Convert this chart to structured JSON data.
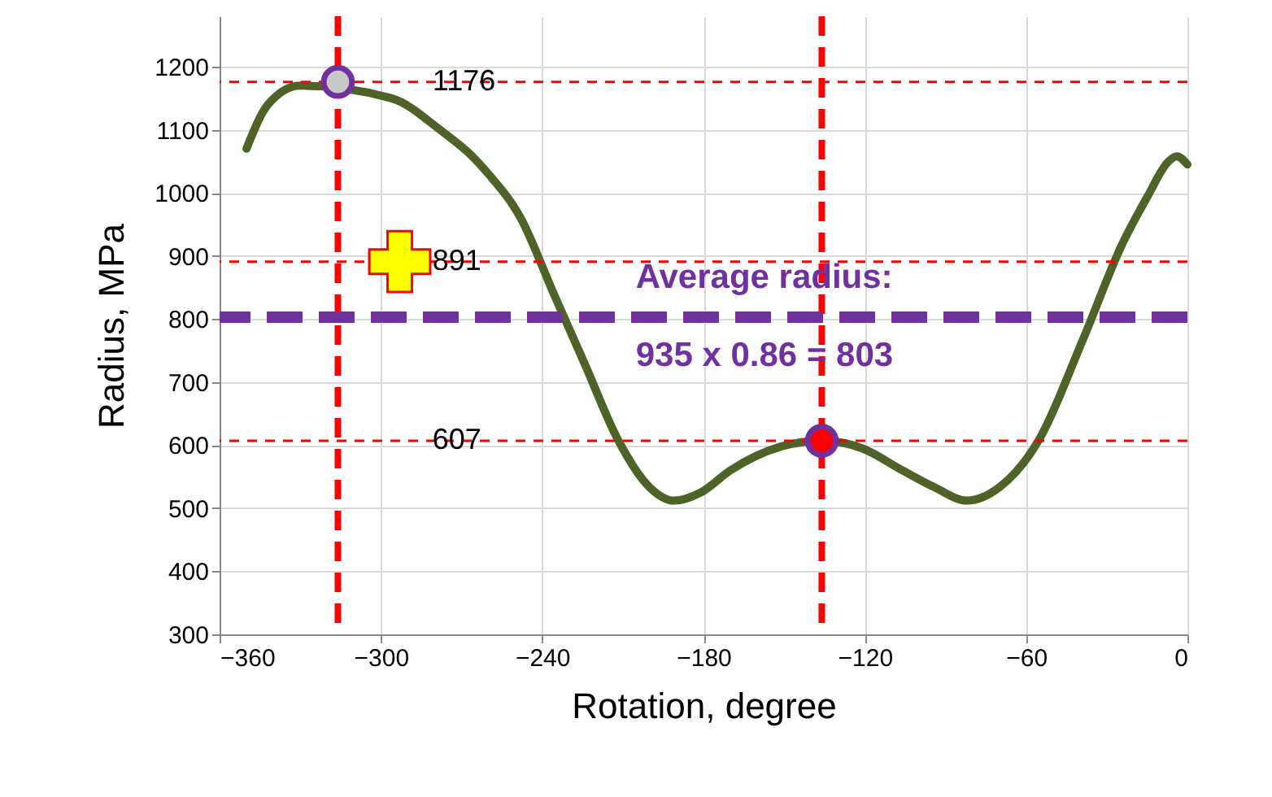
{
  "chart_data": {
    "type": "line",
    "xlabel": "Rotation, degree",
    "ylabel": "Radius, MPa",
    "xlim": [
      -360,
      0
    ],
    "xticks": [
      -360,
      -300,
      -240,
      -180,
      -120,
      -60,
      0
    ],
    "ylim": [
      300,
      1280
    ],
    "yticks": [
      300,
      400,
      500,
      600,
      700,
      800,
      900,
      1000,
      1100,
      1200
    ],
    "grid": true,
    "line_style": "solid",
    "series": [
      {
        "color": "#4f6228",
        "x": [
          -350,
          -342,
          -330,
          -296,
          -278,
          -266,
          -260,
          -248,
          -236,
          -224,
          -212,
          -200,
          -191,
          -181,
          -170,
          -151,
          -136,
          -121,
          -106,
          -94,
          -82,
          -70,
          -55,
          -39,
          -24,
          -15,
          -7,
          -4,
          0
        ],
        "values": [
          1070,
          1140,
          1170,
          1150,
          1100,
          1058,
          1030,
          960,
          843,
          727,
          610,
          533,
          512,
          525,
          560,
          598,
          607,
          595,
          560,
          533,
          512,
          533,
          610,
          766,
          921,
          993,
          1050,
          1058,
          1045
        ]
      },
      {
        "type": "scatter",
        "marker": "circle",
        "color": "#c8c8c8",
        "x": [
          -316
        ],
        "values": [
          1176
        ]
      },
      {
        "type": "scatter",
        "marker": "circle",
        "color": "#ff0000",
        "x": [
          -136
        ],
        "values": [
          607
        ]
      },
      {
        "type": "scatter",
        "marker": "cross",
        "color": "#ffff00",
        "x": [
          -293
        ],
        "values": [
          891
        ]
      }
    ],
    "ref_lines": [
      {
        "axis": "y",
        "value": 1176,
        "label": "1176",
        "color": "#ff0000",
        "line_style": "dashed"
      },
      {
        "axis": "y",
        "value": 891,
        "label": "891",
        "color": "#ff0000",
        "line_style": "dashed"
      },
      {
        "axis": "y",
        "value": 607,
        "label": "607",
        "color": "#ff0000",
        "line_style": "dashed"
      },
      {
        "axis": "x",
        "value": -316,
        "color": "#ff0000",
        "line_style": "dashed"
      },
      {
        "axis": "x",
        "value": -136,
        "color": "#ff0000",
        "line_style": "dashed"
      },
      {
        "axis": "y",
        "value": 803,
        "label": "Average radius:\n935 x 0.86 = 803",
        "color": "#7030a0",
        "line_style": "dashed"
      }
    ]
  }
}
